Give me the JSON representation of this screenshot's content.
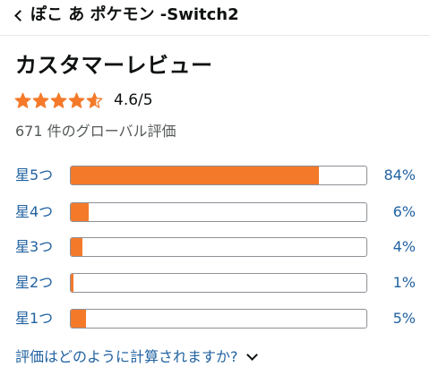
{
  "header": {
    "back_icon": "chevron-left-icon",
    "product_title": "ぽこ あ ポケモン -Switch2"
  },
  "reviews": {
    "heading": "カスタマーレビュー",
    "rating": 4.6,
    "rating_label": "4.6/5",
    "global_count": "671 件のグローバル評価",
    "star_color": "#f47a2a",
    "histogram": [
      {
        "label": "星5つ",
        "percent": 84,
        "percent_label": "84%"
      },
      {
        "label": "星4つ",
        "percent": 6,
        "percent_label": "6%"
      },
      {
        "label": "星3つ",
        "percent": 4,
        "percent_label": "4%"
      },
      {
        "label": "星2つ",
        "percent": 1,
        "percent_label": "1%"
      },
      {
        "label": "星1つ",
        "percent": 5,
        "percent_label": "5%"
      }
    ],
    "how_calculated": "評価はどのように計算されますか?",
    "how_calculated_icon": "chevron-down-icon"
  }
}
